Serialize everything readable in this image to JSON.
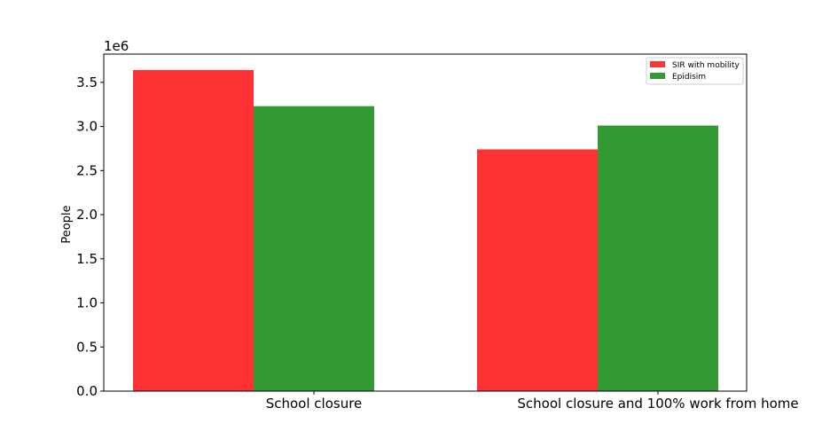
{
  "chart_data": {
    "type": "bar",
    "categories": [
      "School closure",
      "School closure and 100% work from home"
    ],
    "series": [
      {
        "name": "SIR with mobility",
        "values": [
          3640000,
          2740000
        ],
        "color": "#ff3333"
      },
      {
        "name": "Epidisim",
        "values": [
          3230000,
          3010000
        ],
        "color": "#339933"
      }
    ],
    "ylabel": "People",
    "xlabel": "",
    "ylim": [
      0,
      3820000
    ],
    "yticks": [
      0,
      0.5,
      1.0,
      1.5,
      2.0,
      2.5,
      3.0,
      3.5
    ],
    "ytick_labels": [
      "0.0",
      "0.5",
      "1.0",
      "1.5",
      "2.0",
      "2.5",
      "3.0",
      "3.5"
    ],
    "offset_text": "1e6",
    "legend_position": "top-right",
    "grid": false
  }
}
